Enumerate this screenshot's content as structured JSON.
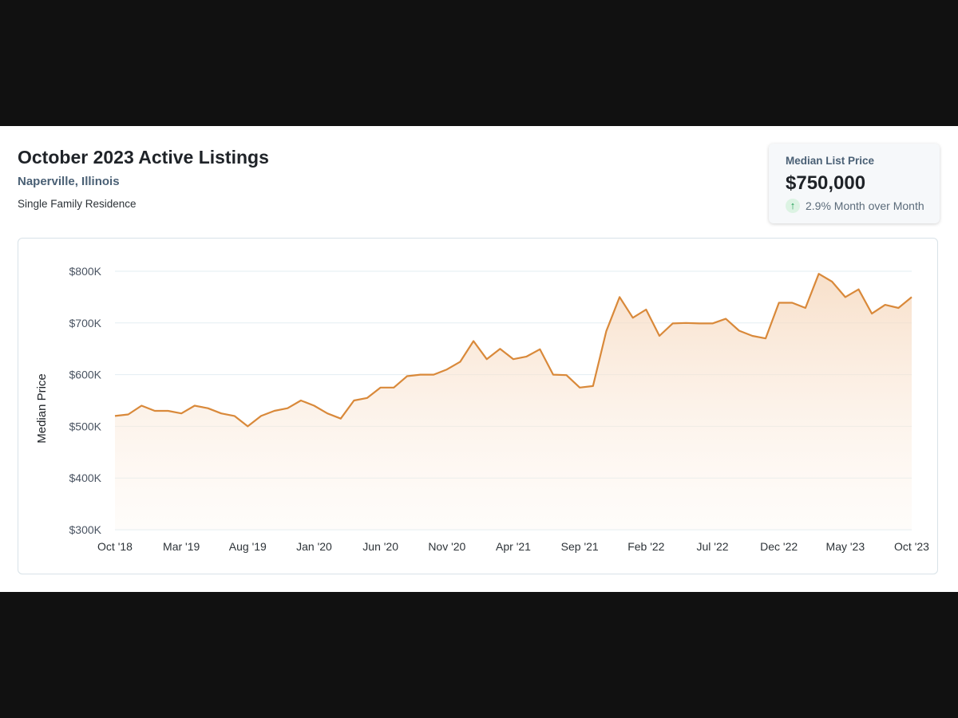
{
  "header": {
    "title": "October 2023 Active Listings",
    "location": "Naperville, Illinois",
    "property_type": "Single Family Residence"
  },
  "stat": {
    "label": "Median List Price",
    "value": "$750,000",
    "change": "2.9% Month over Month",
    "direction": "up"
  },
  "colors": {
    "line": "#d9893a",
    "area_top": "#f6d8bd",
    "grid": "#e3edf2",
    "up_green": "#1f9d55"
  },
  "chart_data": {
    "type": "area",
    "ylabel": "Median Price",
    "xlabel": "",
    "ylim": [
      300000,
      800000
    ],
    "y_ticks": [
      300000,
      400000,
      500000,
      600000,
      700000,
      800000
    ],
    "y_tick_labels": [
      "$300K",
      "$400K",
      "$500K",
      "$600K",
      "$700K",
      "$800K"
    ],
    "x_ticks": [
      "Oct '18",
      "Mar '19",
      "Aug '19",
      "Jan '20",
      "Jun '20",
      "Nov '20",
      "Apr '21",
      "Sep '21",
      "Feb '22",
      "Jul '22",
      "Dec '22",
      "May '23",
      "Oct '23"
    ],
    "x_start": "2018-10",
    "x_end": "2023-10",
    "grid": true,
    "legend": "none",
    "series": [
      {
        "values": [
          520000,
          523000,
          540000,
          530000,
          530000,
          525000,
          540000,
          535000,
          525000,
          520000,
          500000,
          520000,
          530000,
          535000,
          550000,
          540000,
          525000,
          515000,
          550000,
          555000,
          575000,
          575000,
          597000,
          600000,
          600000,
          610000,
          625000,
          665000,
          630000,
          650000,
          630000,
          635000,
          649000,
          600000,
          599000,
          575000,
          578000,
          684000,
          750000,
          710000,
          726000,
          675000,
          699000,
          700000,
          699000,
          699000,
          708000,
          685000,
          675000,
          670000,
          739000,
          739000,
          729000,
          795000,
          780000,
          750000,
          765000,
          718000,
          735000,
          729000,
          750000
        ]
      }
    ]
  }
}
